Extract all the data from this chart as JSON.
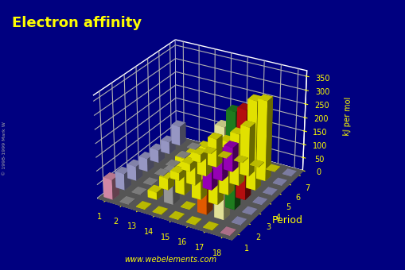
{
  "title": "Electron affinity",
  "zlabel": "kJ per mol",
  "background_color": "#000080",
  "title_color": "#ffff00",
  "tick_color": "#ffff00",
  "website": "www.webelements.com",
  "copyright": "© 1998-1999 Mark W",
  "period_label": "Period",
  "z_ticks": [
    0,
    50,
    100,
    150,
    200,
    250,
    300,
    350
  ],
  "zlim": 370,
  "groups": [
    1,
    2,
    13,
    14,
    15,
    16,
    17,
    18
  ],
  "periods": [
    1,
    2,
    3,
    4,
    5,
    6,
    7
  ],
  "ea_data": {
    "1": {
      "1": 72.8,
      "2": 0,
      "13": 0,
      "14": 0,
      "15": 0,
      "16": 0,
      "17": 0,
      "18": 0
    },
    "2": {
      "1": 59.6,
      "2": 0,
      "13": 26.7,
      "14": 121.8,
      "15": 0,
      "16": 140.9,
      "17": 328.2,
      "18": 0
    },
    "3": {
      "1": 52.8,
      "2": 0,
      "13": 41.8,
      "14": 133.6,
      "15": 72.0,
      "16": 200.4,
      "17": 349.0,
      "18": 0
    },
    "4": {
      "1": 48.4,
      "2": 0,
      "13": 28.9,
      "14": 119.0,
      "15": 78.2,
      "16": 194.9,
      "17": 324.6,
      "18": 0
    },
    "5": {
      "1": 46.9,
      "2": 0,
      "13": 28.9,
      "14": 107.3,
      "15": 103.0,
      "16": 190.2,
      "17": 324.9,
      "18": 0
    },
    "6": {
      "1": 45.5,
      "2": 0,
      "13": 31.1,
      "14": 106.1,
      "15": 91.2,
      "16": 183.3,
      "17": 295.2,
      "18": 0
    },
    "7": {
      "1": 73.0,
      "2": 0,
      "13": 0,
      "14": 0,
      "15": 0,
      "16": 0,
      "17": 0,
      "18": 0
    }
  },
  "bar_colors": {
    "1_1": "#ee99bb",
    "2_1": "#aaaadd",
    "3_1": "#aaaadd",
    "4_1": "#aaaadd",
    "5_1": "#aaaadd",
    "6_1": "#aaaadd",
    "7_1": "#aaaadd",
    "2_14": "#aaaaaa",
    "3_14": "#ffff00",
    "4_14": "#ffff00",
    "5_14": "#ffff00",
    "6_14": "#ffff00",
    "2_15": "#aa00cc",
    "3_15": "#ffff00",
    "4_15": "#aa00cc",
    "5_15": "#aa00cc",
    "6_15": "#aa00cc",
    "2_16": "#ff6600",
    "3_16": "#ffff00",
    "4_16": "#ffff00",
    "5_16": "#ffff00",
    "6_16": "#ffff00",
    "2_17": "#ffffaa",
    "3_17": "#228b22",
    "4_17": "#cc1111",
    "5_17": "#ffff00",
    "6_17": "#ffff00",
    "default": "#ffff00"
  },
  "flat_colors": {
    "group1": "#aaaadd",
    "group2": "#aaaaaa",
    "group18": "#aaaadd",
    "period1_18": "#ee99bb",
    "period1_2": "#aaaadd",
    "default": "#ffff00"
  },
  "elev": 28,
  "azim": -60,
  "bar_width": 0.55,
  "bar_depth": 0.55,
  "floor_color": "#555555",
  "pane_color": "#000080",
  "grid_color": "#ffffff"
}
